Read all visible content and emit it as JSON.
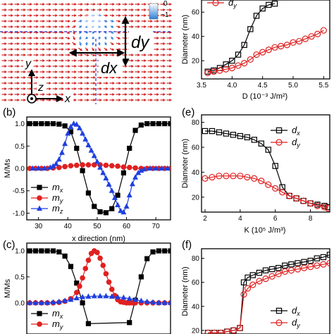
{
  "panels": {
    "b": "(b)",
    "c": "(c)",
    "e": "(e)",
    "f": "(f)"
  },
  "map": {
    "colorbar_ticks": [
      "0",
      "−1"
    ],
    "dx_label": "dx",
    "dy_label": "dy",
    "axes": {
      "y": "y",
      "z": "z",
      "x": "x"
    },
    "colors": {
      "arrow": "#d42020",
      "core": "#2f7fd6",
      "guide": "#3030c8",
      "highlight": "#ffffff"
    }
  },
  "chart_data": [
    {
      "id": "a-right",
      "type": "line",
      "xlabel": "D (10⁻³ J/m²)",
      "ylabel": "Diameter (nm)",
      "xlim": [
        3.5,
        5.6
      ],
      "ylim": [
        5,
        70
      ],
      "xticks": [
        "3.5",
        "4.0",
        "4.5",
        "5.0",
        "5.5"
      ],
      "yticks": [
        "20",
        "40",
        "60"
      ],
      "legend": [
        {
          "name": "dy",
          "marker": "circle"
        }
      ],
      "series": [
        {
          "name": "dx",
          "marker": "square",
          "color": "#000000",
          "x": [
            3.6,
            3.7,
            3.8,
            3.9,
            4.0,
            4.1,
            4.2,
            4.3,
            4.4,
            4.5,
            4.6,
            4.7
          ],
          "y": [
            11,
            12,
            14,
            17,
            20,
            25,
            33,
            46,
            57,
            63,
            66,
            67
          ]
        },
        {
          "name": "dy",
          "marker": "circle",
          "color": "#e02020",
          "x": [
            3.6,
            3.7,
            3.8,
            3.9,
            4.0,
            4.1,
            4.2,
            4.3,
            4.4,
            4.5,
            4.6,
            4.7,
            4.8,
            4.9,
            5.0,
            5.1,
            5.2,
            5.3,
            5.4,
            5.5
          ],
          "y": [
            10,
            11,
            12,
            13,
            14,
            16,
            18,
            21,
            25,
            27,
            29,
            31,
            32,
            33,
            35,
            36,
            38,
            40,
            42,
            45
          ]
        }
      ]
    },
    {
      "id": "b",
      "type": "line",
      "xlabel": "x direction (nm)",
      "ylabel": "M/Ms",
      "xlim": [
        26,
        75
      ],
      "ylim": [
        -1.15,
        1.15
      ],
      "xticks": [
        "30",
        "40",
        "50",
        "60",
        "70"
      ],
      "yticks": [
        "-1.0",
        "-0.5",
        "0.0",
        "0.5",
        "1.0"
      ],
      "legend": [
        {
          "name": "mx",
          "marker": "square"
        },
        {
          "name": "my",
          "marker": "circle"
        },
        {
          "name": "mz",
          "marker": "triangle"
        }
      ],
      "series": [
        {
          "name": "mx",
          "marker": "square",
          "color": "#000000",
          "x": [
            27,
            29,
            31,
            33,
            35,
            37,
            39,
            41,
            43,
            45,
            47,
            49,
            51,
            53,
            55,
            57,
            59,
            61,
            63,
            65,
            67,
            69,
            71,
            73,
            75
          ],
          "y": [
            1,
            1,
            1,
            1,
            1,
            0.99,
            0.95,
            0.82,
            0.45,
            -0.05,
            -0.55,
            -0.85,
            -0.97,
            -0.99,
            -0.9,
            -0.6,
            -0.1,
            0.45,
            0.85,
            0.97,
            1,
            1,
            1,
            1,
            1
          ]
        },
        {
          "name": "my",
          "marker": "circle",
          "color": "#e02020",
          "x": [
            27,
            29,
            31,
            33,
            35,
            37,
            39,
            41,
            43,
            45,
            47,
            49,
            51,
            53,
            55,
            57,
            59,
            61,
            63,
            65,
            67,
            69,
            71,
            73,
            75
          ],
          "y": [
            0,
            0,
            0,
            0,
            0.01,
            0.02,
            0.04,
            0.06,
            0.07,
            0.08,
            0.08,
            0.08,
            0.08,
            0.07,
            0.06,
            0.05,
            0.03,
            0.02,
            0.01,
            0,
            0,
            0,
            0,
            0,
            0
          ]
        },
        {
          "name": "mz",
          "marker": "triangle",
          "color": "#1f3fe0",
          "x": [
            28,
            30,
            32,
            34,
            35,
            36,
            37,
            38,
            39,
            40,
            41,
            42,
            43,
            44,
            45,
            46,
            47,
            48,
            49,
            50,
            51,
            52,
            53,
            54,
            55,
            56,
            57,
            58,
            59,
            60,
            61,
            62,
            63,
            64,
            65,
            66,
            68,
            70,
            72,
            74
          ],
          "y": [
            0,
            0,
            0,
            0.02,
            0.05,
            0.1,
            0.2,
            0.35,
            0.55,
            0.78,
            0.93,
            1.0,
            0.98,
            0.9,
            0.78,
            0.65,
            0.52,
            0.4,
            0.28,
            0.15,
            0.02,
            -0.1,
            -0.22,
            -0.36,
            -0.5,
            -0.66,
            -0.82,
            -0.95,
            -0.98,
            -0.85,
            -0.6,
            -0.35,
            -0.2,
            -0.1,
            -0.05,
            -0.02,
            0,
            0,
            0,
            0
          ]
        }
      ]
    },
    {
      "id": "c",
      "type": "line",
      "xlabel": "",
      "ylabel": "M/Ms",
      "xlim": [
        26,
        75
      ],
      "ylim": [
        -0.6,
        1.15
      ],
      "xticks": [],
      "yticks": [
        "0.0",
        "0.5",
        "1.0"
      ],
      "legend": [
        {
          "name": "mx",
          "marker": "square"
        },
        {
          "name": "my",
          "marker": "circle"
        }
      ],
      "series": [
        {
          "name": "mx",
          "marker": "square",
          "color": "#000000",
          "x": [
            27,
            29,
            31,
            33,
            35,
            37,
            39,
            41,
            43,
            45,
            47,
            61,
            63,
            65,
            67,
            69,
            71,
            73,
            75
          ],
          "y": [
            1,
            1,
            1,
            1,
            1,
            0.98,
            0.9,
            0.7,
            0.38,
            0,
            -0.4,
            -0.38,
            0.05,
            0.5,
            0.85,
            0.98,
            1,
            1,
            1
          ]
        },
        {
          "name": "my",
          "marker": "circle",
          "color": "#e02020",
          "x": [
            27,
            29,
            31,
            33,
            35,
            37,
            39,
            41,
            43,
            44,
            45,
            46,
            47,
            48,
            49,
            50,
            51,
            52,
            53,
            54,
            55,
            56,
            57,
            58,
            59,
            60,
            61,
            62,
            63,
            65,
            67,
            69,
            71,
            73,
            75
          ],
          "y": [
            0,
            0,
            0,
            0,
            0,
            0.01,
            0.03,
            0.08,
            0.2,
            0.32,
            0.48,
            0.66,
            0.82,
            0.95,
            1.0,
            0.97,
            0.86,
            0.72,
            0.56,
            0.4,
            0.26,
            0.14,
            0.06,
            0.02,
            0.01,
            0,
            0,
            0,
            0,
            0,
            0,
            0,
            0,
            0,
            0
          ]
        },
        {
          "name": "mz",
          "marker": "triangle",
          "color": "#1f3fe0",
          "x": [
            27,
            29,
            31,
            33,
            35,
            37,
            39,
            41,
            43,
            45,
            47,
            49,
            51,
            53,
            55,
            57,
            59,
            61,
            63,
            65,
            67,
            69,
            71,
            73,
            75
          ],
          "y": [
            0,
            0,
            0,
            0,
            0.01,
            0.02,
            0.04,
            0.06,
            0.09,
            0.11,
            0.12,
            0.13,
            0.13,
            0.13,
            0.12,
            0.11,
            0.1,
            0.08,
            0.06,
            0.04,
            0.02,
            0.01,
            0,
            0,
            0
          ]
        }
      ]
    },
    {
      "id": "e",
      "type": "line",
      "xlabel": "K (10⁵ J/m³)",
      "ylabel": "Diameter (nm)",
      "xlim": [
        1.8,
        9.1
      ],
      "ylim": [
        8,
        86
      ],
      "xticks": [
        "2",
        "4",
        "6",
        "8"
      ],
      "yticks": [
        "20",
        "40",
        "60",
        "80"
      ],
      "legend": [
        {
          "name": "dx",
          "marker": "square"
        },
        {
          "name": "dy",
          "marker": "circle"
        }
      ],
      "series": [
        {
          "name": "dx",
          "marker": "square",
          "color": "#000000",
          "x": [
            2.0,
            2.4,
            2.8,
            3.2,
            3.6,
            4.0,
            4.4,
            4.8,
            5.2,
            5.6,
            6.0,
            6.4,
            6.8,
            7.2,
            7.6,
            8.0,
            8.4,
            8.8,
            9.0
          ],
          "y": [
            73,
            73,
            72,
            71,
            70,
            69,
            68,
            66,
            63,
            58,
            45,
            28,
            21,
            19,
            17,
            15,
            14,
            13,
            12
          ]
        },
        {
          "name": "dy",
          "marker": "circle",
          "color": "#e02020",
          "x": [
            2.0,
            2.4,
            2.8,
            3.2,
            3.6,
            4.0,
            4.4,
            4.8,
            5.2,
            5.6,
            6.0,
            6.4,
            6.8,
            7.2,
            7.6,
            8.0,
            8.4,
            8.8,
            9.0
          ],
          "y": [
            35,
            36,
            37,
            37,
            37,
            37,
            36,
            35,
            33,
            30,
            27,
            24,
            21,
            19,
            17,
            15,
            13,
            12,
            11
          ]
        }
      ]
    },
    {
      "id": "f",
      "type": "line",
      "xlabel": "",
      "ylabel": "Diameter (nm)",
      "xlim": [
        0,
        1
      ],
      "ylim": [
        17,
        88
      ],
      "xticks": [],
      "yticks": [
        "20",
        "40",
        "60",
        "80"
      ],
      "legend": [
        {
          "name": "dx",
          "marker": "square"
        },
        {
          "name": "dy",
          "marker": "circle"
        }
      ],
      "series": [
        {
          "name": "dx",
          "marker": "square",
          "color": "#000000",
          "x": [
            0.05,
            0.1,
            0.15,
            0.2,
            0.25,
            0.3,
            0.33,
            0.36,
            0.4,
            0.45,
            0.5,
            0.55,
            0.6,
            0.65,
            0.7,
            0.75,
            0.8,
            0.85,
            0.9,
            0.95,
            1.0
          ],
          "y": [
            18,
            18,
            18,
            19,
            20,
            22,
            60,
            64,
            66,
            68,
            70,
            71,
            72,
            74,
            75,
            76,
            77,
            78,
            80,
            81,
            83
          ]
        },
        {
          "name": "dy",
          "marker": "circle",
          "color": "#e02020",
          "x": [
            0.05,
            0.1,
            0.15,
            0.2,
            0.25,
            0.3,
            0.33,
            0.36,
            0.4,
            0.45,
            0.5,
            0.55,
            0.6,
            0.65,
            0.7,
            0.75,
            0.8,
            0.85,
            0.9,
            0.95,
            1.0
          ],
          "y": [
            18,
            18,
            18,
            19,
            20,
            22,
            50,
            55,
            58,
            61,
            63,
            65,
            67,
            69,
            70,
            71,
            72,
            73,
            74,
            75,
            76
          ]
        }
      ]
    }
  ]
}
